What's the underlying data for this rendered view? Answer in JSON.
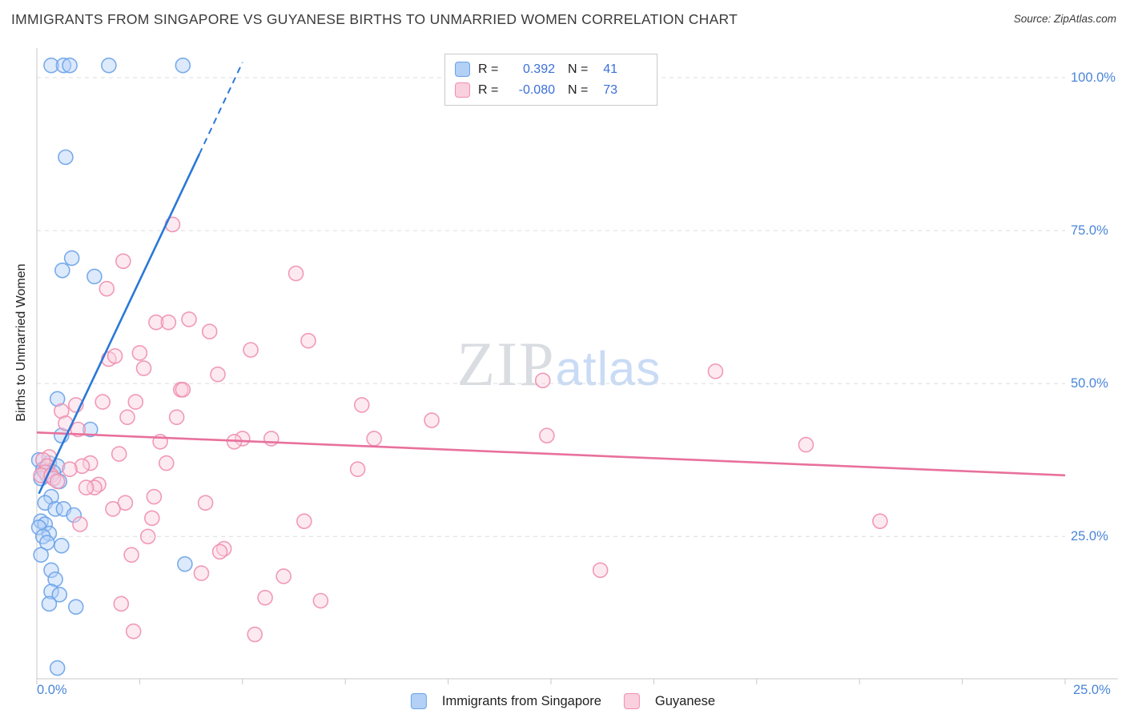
{
  "header": {
    "title": "IMMIGRANTS FROM SINGAPORE VS GUYANESE BIRTHS TO UNMARRIED WOMEN CORRELATION CHART",
    "source": "Source: ZipAtlas.com"
  },
  "watermark": {
    "zip": "ZIP",
    "atlas": "atlas"
  },
  "legend_box": {
    "rows": [
      {
        "swatch": "blue",
        "r_label": "R =",
        "r_value": "0.392",
        "n_label": "N =",
        "n_value": "41"
      },
      {
        "swatch": "pink",
        "r_label": "R =",
        "r_value": "-0.080",
        "n_label": "N =",
        "n_value": "73"
      }
    ]
  },
  "chart_data": {
    "type": "scatter",
    "title": "Immigrants from Singapore vs Guyanese Births to Unmarried Women",
    "xlabel": "Immigrants from Singapore (%)",
    "ylabel": "Births to Unmarried Women",
    "xlim": [
      0,
      25
    ],
    "ylim": [
      0,
      105
    ],
    "grid": "horizontal-dashed",
    "gridlines_pct": [
      25,
      50,
      75,
      100
    ],
    "y_tick_labels": [
      "100.0%",
      "75.0%",
      "50.0%",
      "25.0%"
    ],
    "x_tick_labels": [
      "0.0%",
      "25.0%"
    ],
    "tick_label_color": "#4a86d8",
    "series": [
      {
        "name": "Immigrants from Singapore",
        "R": 0.392,
        "N": 41,
        "stroke": "#6ba3e8",
        "fill": "#b3d0f7",
        "line": "#2b78d8",
        "trend": {
          "solid": [
            [
              0.05,
              32
            ],
            [
              3.95,
              87.5
            ]
          ],
          "dashed": [
            5.0,
            102.5
          ]
        },
        "points": [
          [
            0.35,
            102
          ],
          [
            0.65,
            102
          ],
          [
            0.8,
            102
          ],
          [
            1.75,
            102
          ],
          [
            3.55,
            102
          ],
          [
            0.7,
            87
          ],
          [
            0.85,
            70.5
          ],
          [
            0.62,
            68.5
          ],
          [
            1.4,
            67.5
          ],
          [
            0.5,
            47.5
          ],
          [
            1.3,
            42.5
          ],
          [
            0.6,
            41.5
          ],
          [
            0.05,
            37.5
          ],
          [
            0.3,
            37
          ],
          [
            0.5,
            36.5
          ],
          [
            0.15,
            36
          ],
          [
            0.4,
            35.5
          ],
          [
            0.25,
            35
          ],
          [
            0.1,
            34.5
          ],
          [
            0.55,
            34
          ],
          [
            0.35,
            31.5
          ],
          [
            0.2,
            30.5
          ],
          [
            0.45,
            29.5
          ],
          [
            0.65,
            29.5
          ],
          [
            0.9,
            28.5
          ],
          [
            0.1,
            27.5
          ],
          [
            0.2,
            27
          ],
          [
            0.05,
            26.5
          ],
          [
            0.3,
            25.5
          ],
          [
            0.15,
            25
          ],
          [
            0.25,
            24
          ],
          [
            0.6,
            23.5
          ],
          [
            0.1,
            22
          ],
          [
            0.35,
            19.5
          ],
          [
            0.45,
            18
          ],
          [
            3.6,
            20.5
          ],
          [
            0.35,
            16
          ],
          [
            0.55,
            15.5
          ],
          [
            0.3,
            14
          ],
          [
            0.95,
            13.5
          ],
          [
            0.5,
            3.5
          ]
        ]
      },
      {
        "name": "Guyanese",
        "R": -0.08,
        "N": 73,
        "stroke": "#f08fb0",
        "fill": "#fad0de",
        "line": "#e8719c",
        "trend": {
          "solid": [
            [
              0.0,
              42
            ],
            [
              25.0,
              35
            ]
          ],
          "dashed": null
        },
        "points": [
          [
            3.3,
            76
          ],
          [
            2.1,
            70
          ],
          [
            6.3,
            68
          ],
          [
            1.7,
            65.5
          ],
          [
            2.9,
            60
          ],
          [
            3.2,
            60
          ],
          [
            3.7,
            60.5
          ],
          [
            4.2,
            58.5
          ],
          [
            6.6,
            57
          ],
          [
            5.2,
            55.5
          ],
          [
            2.5,
            55
          ],
          [
            1.75,
            54
          ],
          [
            1.9,
            54.5
          ],
          [
            2.6,
            52.5
          ],
          [
            16.5,
            52
          ],
          [
            12.3,
            50.5
          ],
          [
            4.4,
            51.5
          ],
          [
            3.5,
            49
          ],
          [
            3.55,
            49
          ],
          [
            2.4,
            47
          ],
          [
            1.6,
            47
          ],
          [
            0.95,
            46.5
          ],
          [
            7.9,
            46.5
          ],
          [
            0.6,
            45.5
          ],
          [
            2.2,
            44.5
          ],
          [
            9.6,
            44
          ],
          [
            3.4,
            44.5
          ],
          [
            0.7,
            43.5
          ],
          [
            1.0,
            42.5
          ],
          [
            12.4,
            41.5
          ],
          [
            18.7,
            40
          ],
          [
            5.0,
            41
          ],
          [
            5.7,
            41
          ],
          [
            8.2,
            41
          ],
          [
            3.0,
            40.5
          ],
          [
            4.8,
            40.5
          ],
          [
            2.0,
            38.5
          ],
          [
            0.3,
            38
          ],
          [
            0.15,
            37.5
          ],
          [
            1.3,
            37
          ],
          [
            3.15,
            37
          ],
          [
            7.8,
            36
          ],
          [
            1.1,
            36.5
          ],
          [
            0.25,
            36.5
          ],
          [
            0.8,
            36
          ],
          [
            0.2,
            35.5
          ],
          [
            0.1,
            35
          ],
          [
            0.35,
            35
          ],
          [
            0.4,
            34.5
          ],
          [
            0.5,
            34
          ],
          [
            1.5,
            33.5
          ],
          [
            1.4,
            33
          ],
          [
            1.2,
            33
          ],
          [
            2.85,
            31.5
          ],
          [
            4.1,
            30.5
          ],
          [
            2.15,
            30.5
          ],
          [
            1.85,
            29.5
          ],
          [
            2.8,
            28
          ],
          [
            6.5,
            27.5
          ],
          [
            20.5,
            27.5
          ],
          [
            1.05,
            27
          ],
          [
            2.7,
            25
          ],
          [
            4.55,
            23
          ],
          [
            4.45,
            22.5
          ],
          [
            2.3,
            22
          ],
          [
            13.7,
            19.5
          ],
          [
            4.0,
            19
          ],
          [
            6.0,
            18.5
          ],
          [
            5.55,
            15
          ],
          [
            2.05,
            14
          ],
          [
            6.9,
            14.5
          ],
          [
            5.3,
            9
          ],
          [
            2.35,
            9.5
          ]
        ]
      }
    ]
  }
}
